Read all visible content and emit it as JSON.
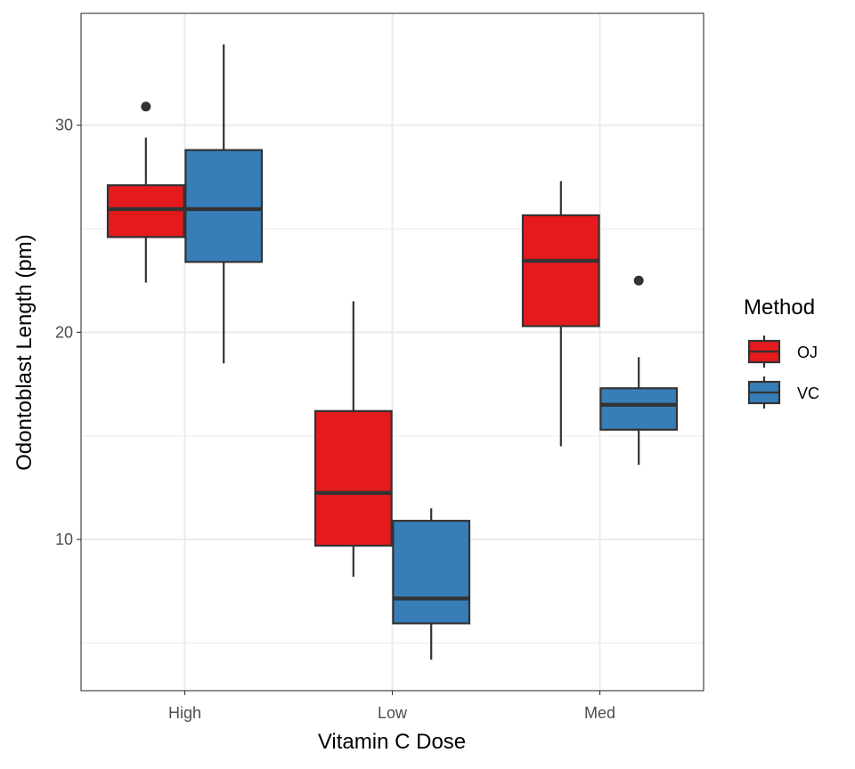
{
  "chart_data": {
    "type": "boxplot",
    "title": "",
    "xlabel": "Vitamin C Dose",
    "ylabel": "Odontoblast Length (pm)",
    "categories": [
      "High",
      "Low",
      "Med"
    ],
    "ylim": [
      2.7,
      35.4
    ],
    "yticks": [
      10,
      20,
      30
    ],
    "grid": true,
    "legend": {
      "title": "Method",
      "placement": "right"
    },
    "series": [
      {
        "name": "OJ",
        "color": "#E41A1C",
        "boxes": [
          {
            "category": "High",
            "lower_whisker": 22.4,
            "q1": 24.6,
            "median": 25.95,
            "q3": 27.1,
            "upper_whisker": 29.4,
            "outliers": [
              30.9
            ]
          },
          {
            "category": "Low",
            "lower_whisker": 8.2,
            "q1": 9.7,
            "median": 12.25,
            "q3": 16.2,
            "upper_whisker": 21.5,
            "outliers": []
          },
          {
            "category": "Med",
            "lower_whisker": 14.5,
            "q1": 20.3,
            "median": 23.45,
            "q3": 25.65,
            "upper_whisker": 27.3,
            "outliers": []
          }
        ]
      },
      {
        "name": "VC",
        "color": "#377EB8",
        "boxes": [
          {
            "category": "High",
            "lower_whisker": 18.5,
            "q1": 23.4,
            "median": 25.95,
            "q3": 28.8,
            "upper_whisker": 33.9,
            "outliers": []
          },
          {
            "category": "Low",
            "lower_whisker": 4.2,
            "q1": 5.95,
            "median": 7.15,
            "q3": 10.9,
            "upper_whisker": 11.5,
            "outliers": []
          },
          {
            "category": "Med",
            "lower_whisker": 13.6,
            "q1": 15.3,
            "median": 16.5,
            "q3": 17.3,
            "upper_whisker": 18.8,
            "outliers": [
              22.5
            ]
          }
        ]
      }
    ]
  }
}
